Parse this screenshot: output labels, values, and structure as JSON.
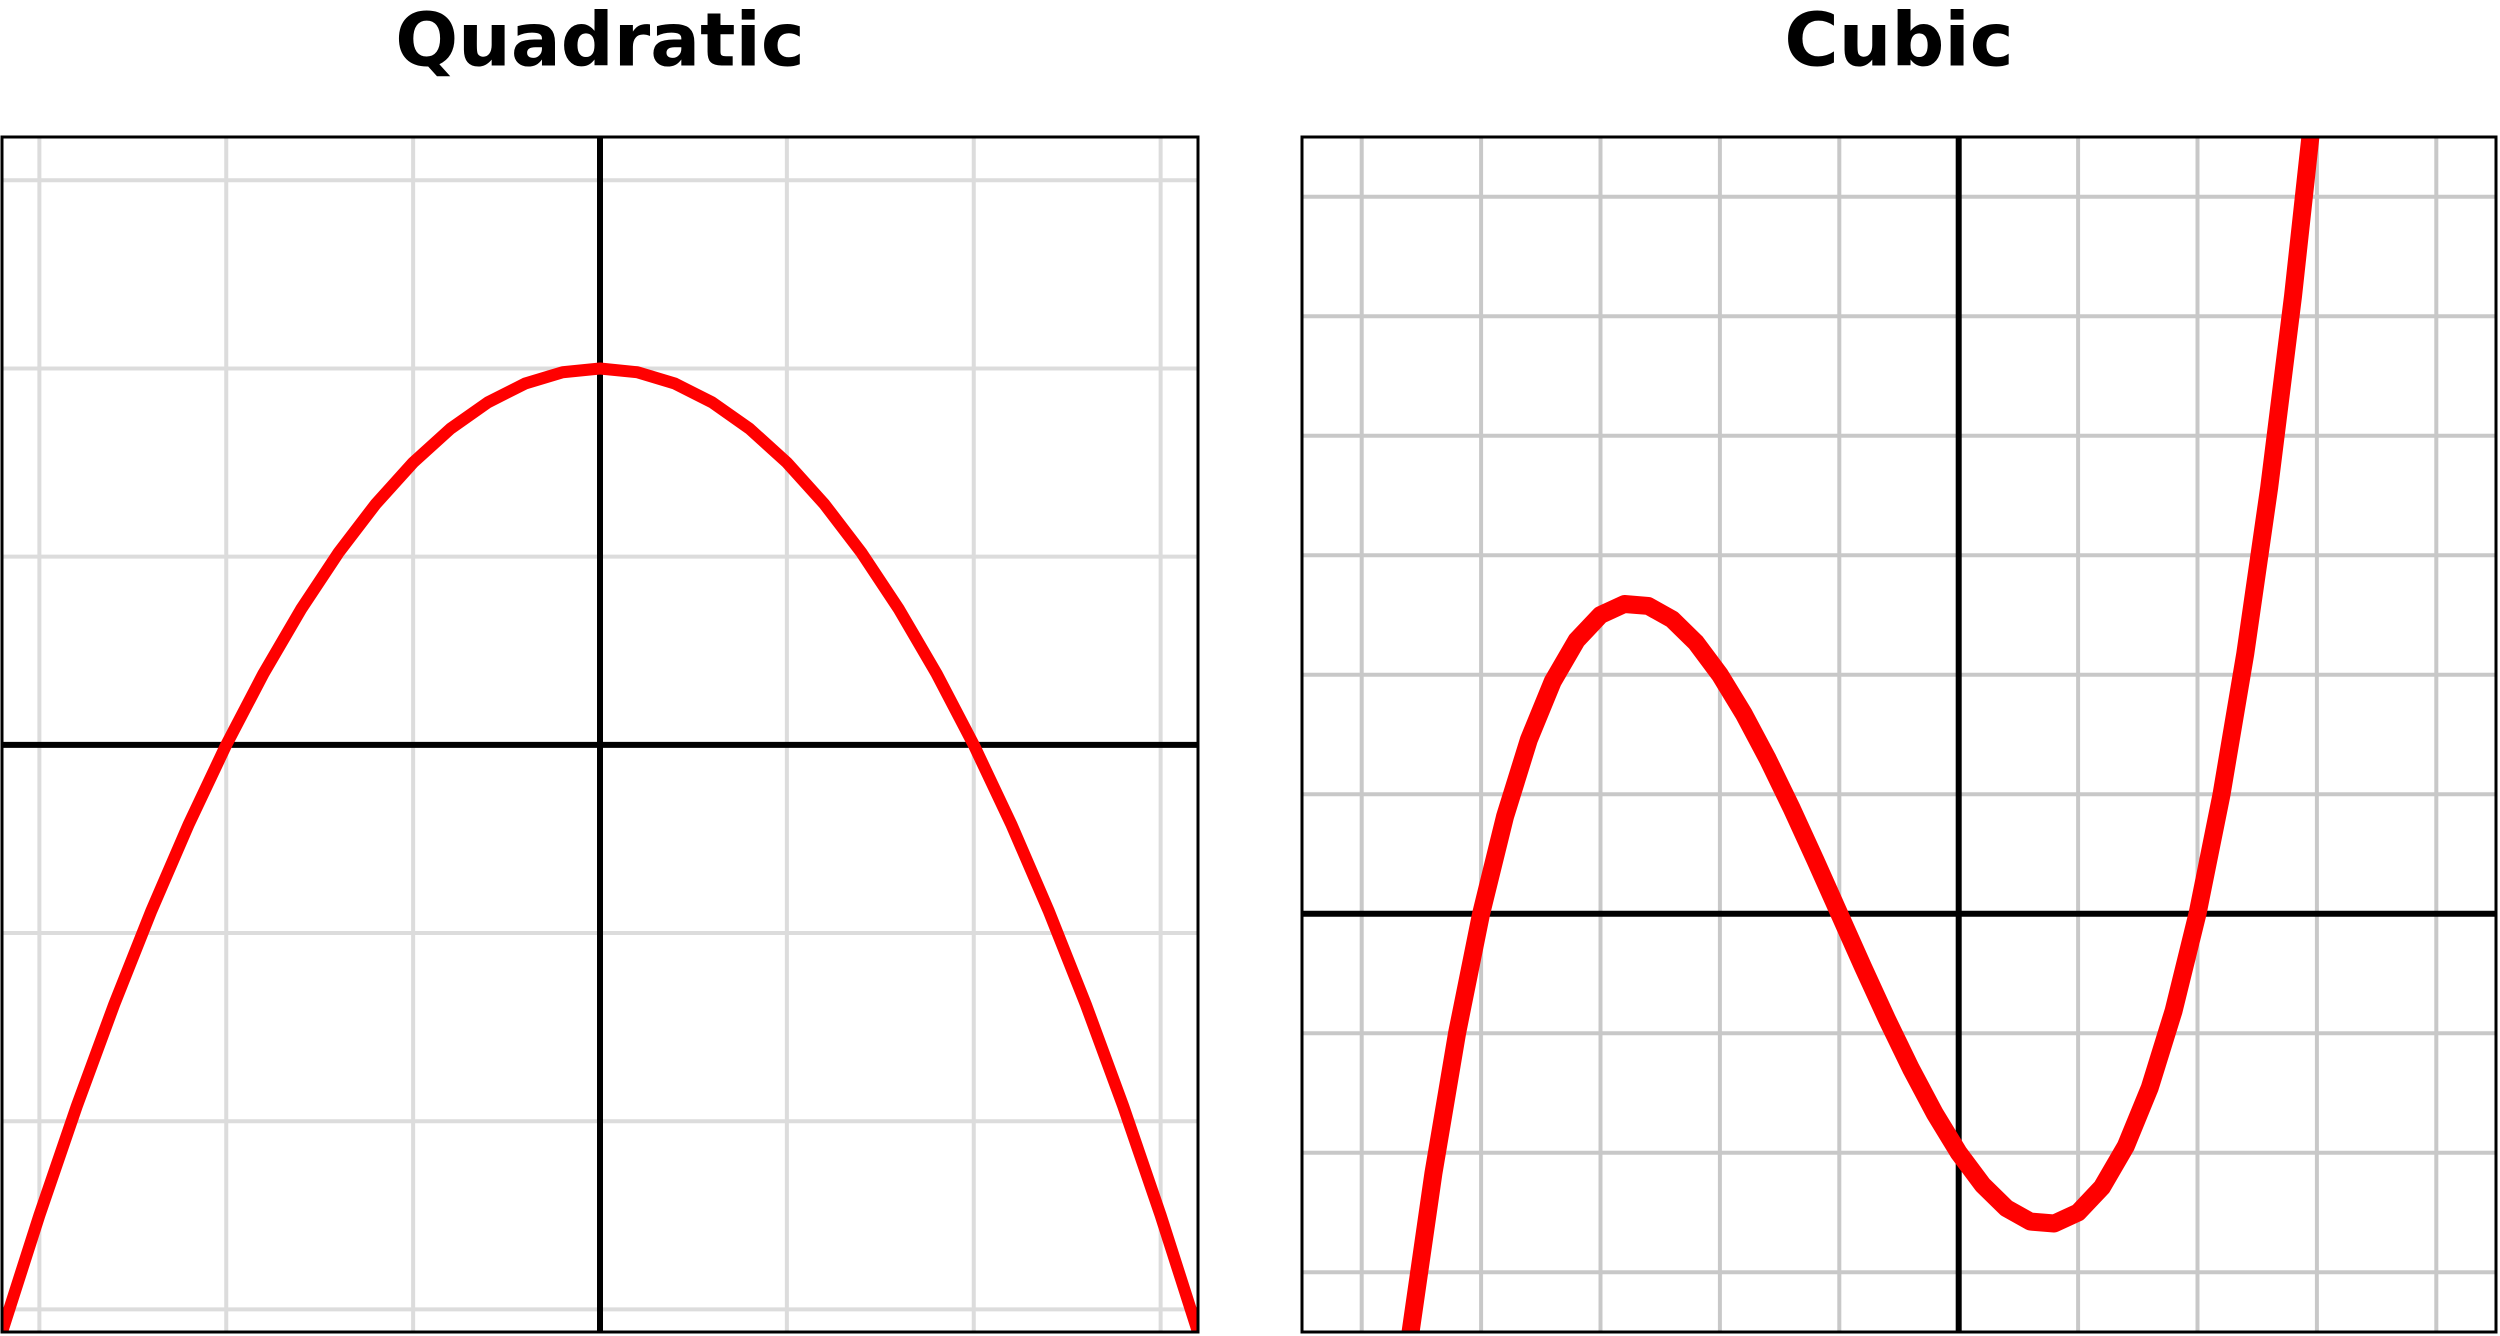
{
  "chart_data": [
    {
      "type": "line",
      "title": "Quadratic",
      "color": "#ff0000",
      "grid": true,
      "grid_color": "#dcdcdc",
      "xlim": [
        -3.2,
        3.2
      ],
      "ylim": [
        -3.12,
        3.23
      ],
      "xticks": [
        -3,
        -2,
        -1,
        0,
        1,
        2,
        3
      ],
      "yticks": [
        -3,
        -2,
        -1,
        0,
        1,
        2,
        3
      ],
      "x": [
        -3.2,
        -3.0,
        -2.8,
        -2.6,
        -2.4,
        -2.2,
        -2.0,
        -1.8,
        -1.6,
        -1.4,
        -1.2,
        -1.0,
        -0.8,
        -0.6,
        -0.4,
        -0.2,
        0,
        0.2,
        0.4,
        0.6,
        0.8,
        1.0,
        1.2,
        1.4,
        1.6,
        1.8,
        2.0,
        2.2,
        2.4,
        2.6,
        2.8,
        3.0,
        3.2
      ],
      "values": [
        -3.12,
        -2.5,
        -1.92,
        -1.38,
        -0.88,
        -0.42,
        0,
        0.38,
        0.72,
        1.02,
        1.28,
        1.5,
        1.68,
        1.82,
        1.92,
        1.98,
        2,
        1.98,
        1.92,
        1.82,
        1.68,
        1.5,
        1.28,
        1.02,
        0.72,
        0.38,
        0,
        -0.42,
        -0.88,
        -1.38,
        -1.92,
        -2.5,
        -3.12
      ]
    },
    {
      "type": "line",
      "title": "Cubic",
      "color": "#ff0000",
      "grid": true,
      "grid_color": "#c8c8c8",
      "xlim": [
        -5.5,
        4.5
      ],
      "ylim": [
        -3.5,
        6.5
      ],
      "xticks": [
        -5,
        -4,
        -3,
        -2,
        -1,
        0,
        1,
        2,
        3,
        4
      ],
      "yticks": [
        -3,
        -2,
        -1,
        0,
        1,
        2,
        3,
        4,
        5,
        6
      ],
      "x": [
        -4.6,
        -4.4,
        -4.2,
        -4.0,
        -3.8,
        -3.6,
        -3.4,
        -3.2,
        -3.0,
        -2.8,
        -2.6,
        -2.4,
        -2.2,
        -2.0,
        -1.8,
        -1.6,
        -1.4,
        -1.2,
        -1.0,
        -0.8,
        -0.6,
        -0.4,
        -0.2,
        0,
        0.2,
        0.4,
        0.6,
        0.8,
        1.0,
        1.2,
        1.4,
        1.6,
        1.8,
        2.0,
        2.2,
        2.4,
        2.6,
        2.8,
        3.0
      ],
      "values": [
        -3.564,
        -2.176,
        -0.992,
        0,
        0.812,
        1.456,
        1.944,
        2.288,
        2.5,
        2.592,
        2.576,
        2.464,
        2.268,
        2,
        1.672,
        1.296,
        0.884,
        0.448,
        0,
        -0.448,
        -0.884,
        -1.296,
        -1.672,
        -2,
        -2.268,
        -2.464,
        -2.576,
        -2.592,
        -2.5,
        -2.288,
        -1.944,
        -1.456,
        -0.812,
        0,
        0.992,
        2.176,
        3.564,
        5.168,
        7
      ]
    }
  ]
}
